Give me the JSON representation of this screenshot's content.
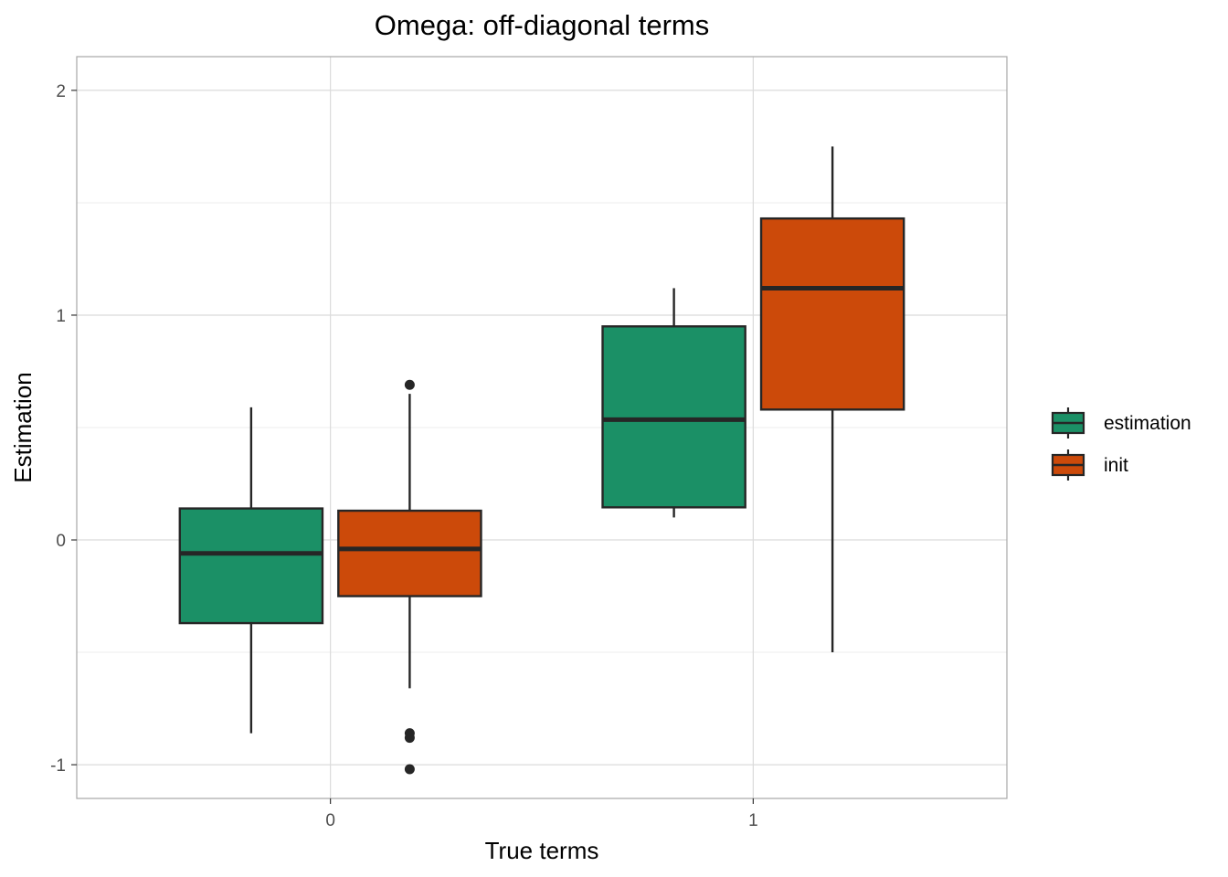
{
  "chart_data": {
    "type": "boxplot",
    "title": "Omega: off-diagonal terms",
    "xlabel": "True terms",
    "ylabel": "Estimation",
    "categories": [
      "0",
      "1"
    ],
    "ylim": [
      -1.15,
      2.15
    ],
    "yticks": [
      -1,
      0,
      1,
      2
    ],
    "ytick_labels": [
      "-1",
      "0",
      "1",
      "2"
    ],
    "grid": true,
    "legend_position": "right",
    "series": [
      {
        "name": "estimation",
        "color": "#1b9066",
        "boxes": [
          {
            "category": "0",
            "whisker_low": -0.86,
            "q1": -0.37,
            "median": -0.06,
            "q3": 0.14,
            "whisker_high": 0.59,
            "outliers": []
          },
          {
            "category": "1",
            "whisker_low": 0.1,
            "q1": 0.145,
            "median": 0.535,
            "q3": 0.95,
            "whisker_high": 1.12,
            "outliers": []
          }
        ]
      },
      {
        "name": "init",
        "color": "#cc4a0a",
        "boxes": [
          {
            "category": "0",
            "whisker_low": -0.66,
            "q1": -0.25,
            "median": -0.04,
            "q3": 0.13,
            "whisker_high": 0.65,
            "outliers": [
              0.69,
              -0.86,
              -0.88,
              -1.02
            ]
          },
          {
            "category": "1",
            "whisker_low": -0.5,
            "q1": 0.58,
            "median": 1.12,
            "q3": 1.43,
            "whisker_high": 1.75,
            "outliers": []
          }
        ]
      }
    ]
  }
}
